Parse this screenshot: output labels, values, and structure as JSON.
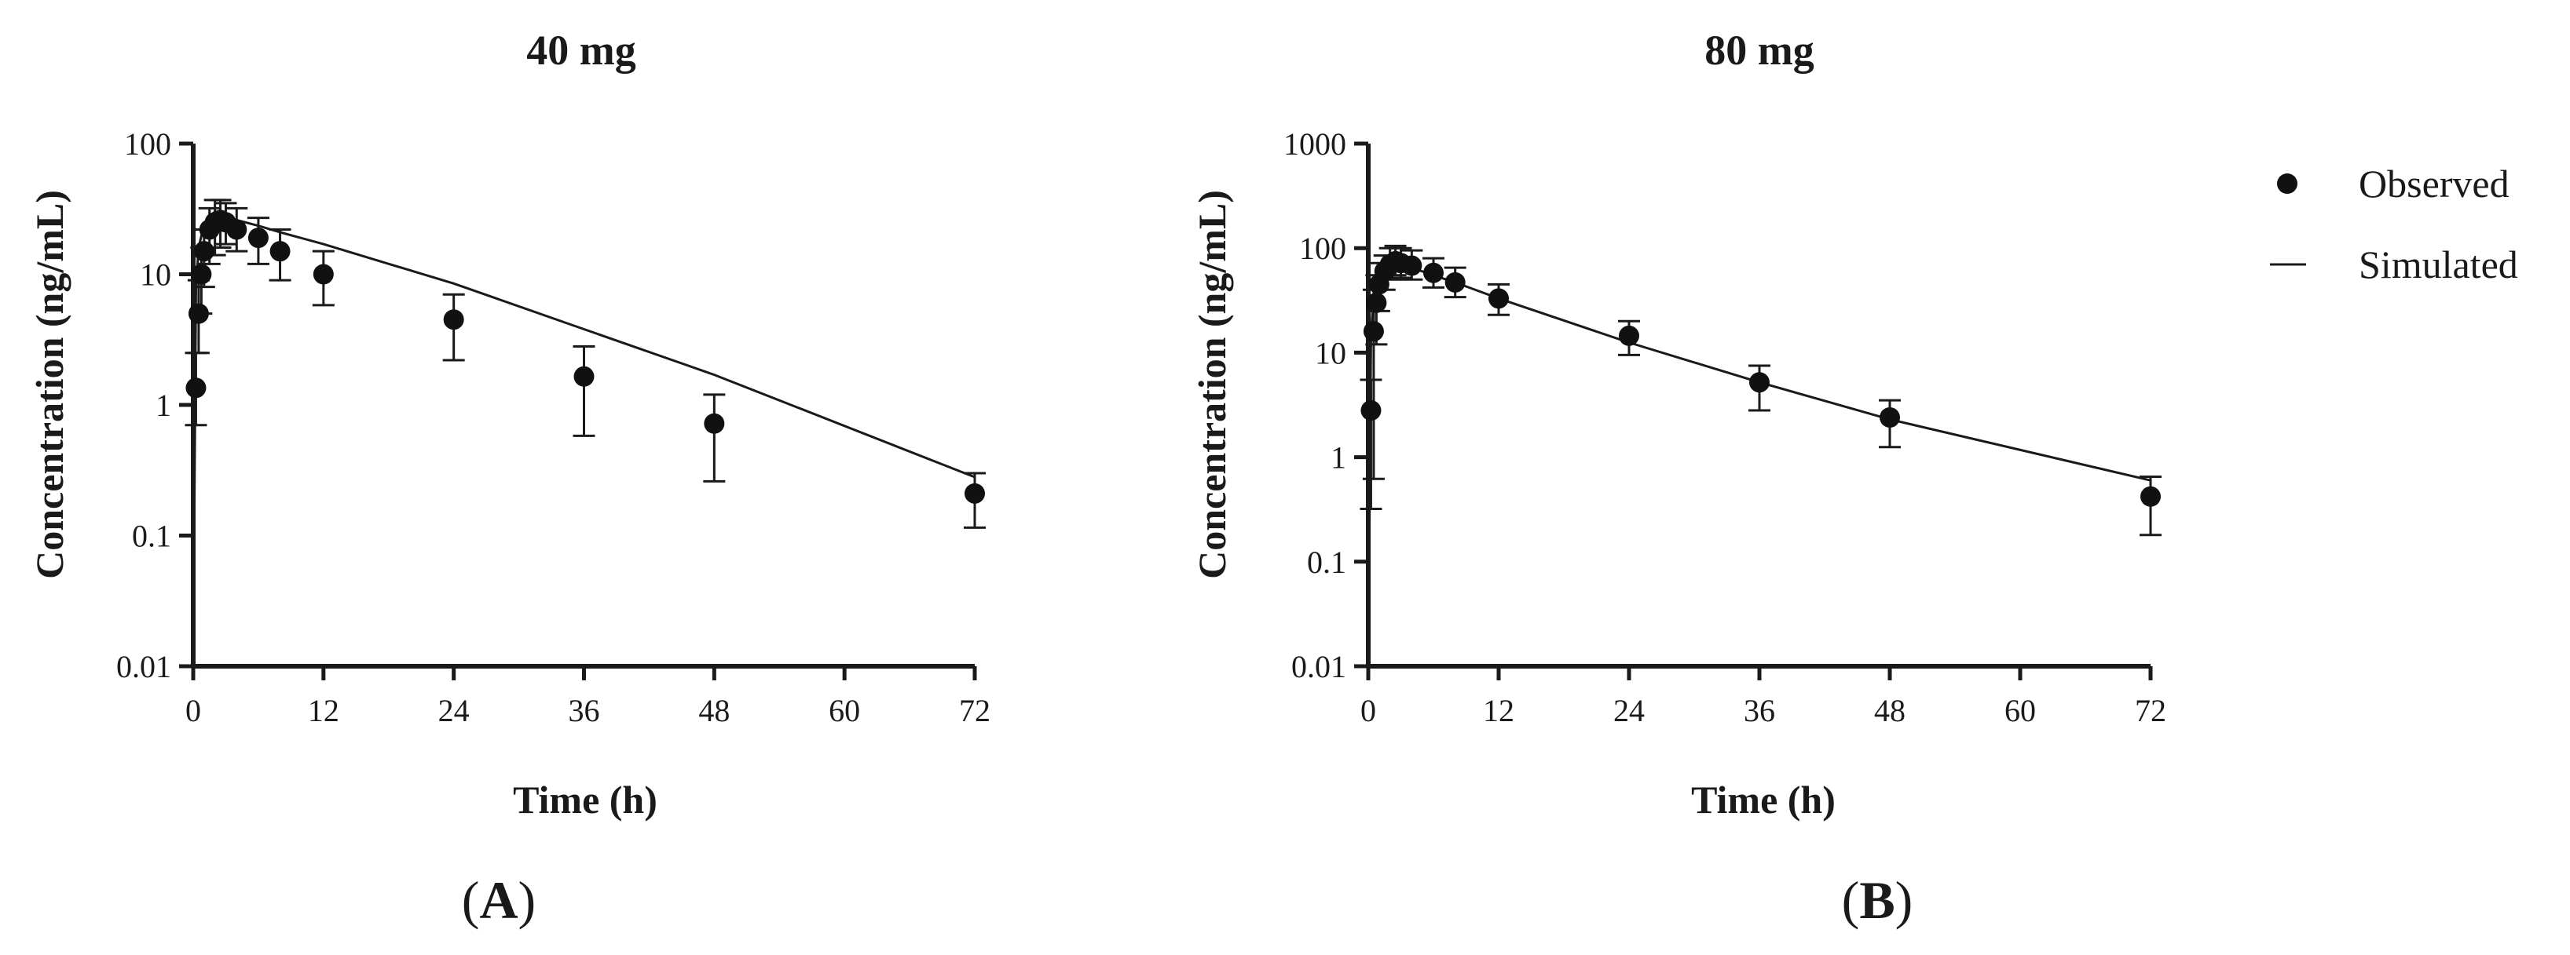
{
  "chart_data": [
    {
      "type": "scatter",
      "panel_label": "A",
      "title": "40 mg",
      "xlabel": "Time (h)",
      "ylabel": "Concentration (ng/mL)",
      "xscale": "linear",
      "yscale": "log",
      "xlim": [
        0,
        72
      ],
      "ylim": [
        0.01,
        100
      ],
      "xticks": [
        0,
        12,
        24,
        36,
        48,
        60,
        72
      ],
      "xtick_labels": [
        "0",
        "12",
        "24",
        "36",
        "48",
        "60",
        "72"
      ],
      "yticks": [
        0.01,
        0.1,
        1,
        10,
        100
      ],
      "ytick_labels": [
        "0.01",
        "0.1",
        "1",
        "10",
        "100"
      ],
      "series": [
        {
          "name": "Observed",
          "kind": "points_with_error",
          "x": [
            0.25,
            0.5,
            0.75,
            1,
            1.5,
            2,
            2.5,
            3,
            4,
            6,
            8,
            12,
            24,
            36,
            48,
            72
          ],
          "y": [
            1.35,
            5.0,
            10.0,
            15.0,
            22.0,
            25.0,
            26.0,
            25.0,
            22.0,
            19.0,
            15.0,
            10.0,
            4.5,
            1.65,
            0.72,
            0.21
          ],
          "y_low": [
            0.7,
            2.5,
            5.0,
            8.0,
            12.0,
            14.0,
            16.0,
            17.0,
            15.0,
            12.0,
            9.0,
            5.8,
            2.2,
            0.58,
            0.26,
            0.115
          ],
          "y_high": [
            2.5,
            9.0,
            16.0,
            22.0,
            32.0,
            37.0,
            37.0,
            35.0,
            32.0,
            27.0,
            22.0,
            15.0,
            7.0,
            2.8,
            1.2,
            0.3
          ]
        },
        {
          "name": "Simulated",
          "kind": "line",
          "x": [
            0,
            0.25,
            0.5,
            1,
            1.5,
            2,
            3,
            4,
            6,
            8,
            12,
            24,
            36,
            48,
            72
          ],
          "y": [
            0.01,
            8,
            16,
            24,
            28,
            30,
            28,
            26,
            23.5,
            21,
            17,
            8.5,
            3.8,
            1.7,
            0.28
          ]
        }
      ]
    },
    {
      "type": "scatter",
      "panel_label": "B",
      "title": "80 mg",
      "xlabel": "Time (h)",
      "ylabel": "Concentration (ng/mL)",
      "xscale": "linear",
      "yscale": "log",
      "xlim": [
        0,
        72
      ],
      "ylim": [
        0.01,
        1000
      ],
      "xticks": [
        0,
        12,
        24,
        36,
        48,
        60,
        72
      ],
      "xtick_labels": [
        "0",
        "12",
        "24",
        "36",
        "48",
        "60",
        "72"
      ],
      "yticks": [
        0.01,
        0.1,
        1,
        10,
        100,
        1000
      ],
      "ytick_labels": [
        "0.01",
        "0.1",
        "1",
        "10",
        "100",
        "1000"
      ],
      "series": [
        {
          "name": "Observed",
          "kind": "points_with_error",
          "x": [
            0.25,
            0.5,
            0.75,
            1,
            1.5,
            2,
            2.5,
            3,
            4,
            6,
            8,
            12,
            24,
            36,
            48,
            72
          ],
          "y": [
            2.8,
            16.0,
            30.0,
            45.0,
            60.0,
            70.0,
            75.0,
            72.0,
            68.0,
            58.0,
            47.0,
            33.0,
            14.5,
            5.2,
            2.4,
            0.42
          ],
          "y_low": [
            0.32,
            0.62,
            12.0,
            25.0,
            40.0,
            50.0,
            55.0,
            52.0,
            50.0,
            42.0,
            34.0,
            23.0,
            9.5,
            2.8,
            1.25,
            0.18
          ],
          "y_high": [
            5.5,
            40.0,
            55.0,
            72.0,
            85.0,
            100.0,
            105.0,
            100.0,
            95.0,
            80.0,
            65.0,
            45.0,
            20.0,
            7.5,
            3.5,
            0.65
          ]
        },
        {
          "name": "Simulated",
          "kind": "line",
          "x": [
            0,
            0.25,
            0.5,
            1,
            1.5,
            2,
            3,
            4,
            6,
            8,
            12,
            24,
            36,
            48,
            72
          ],
          "y": [
            0.01,
            15,
            35,
            55,
            65,
            70,
            68,
            65,
            55,
            47,
            33,
            12.5,
            5.2,
            2.3,
            0.6
          ]
        }
      ]
    }
  ],
  "legend": {
    "position": "top-right",
    "observed_label": "Observed",
    "simulated_label": "Simulated"
  }
}
